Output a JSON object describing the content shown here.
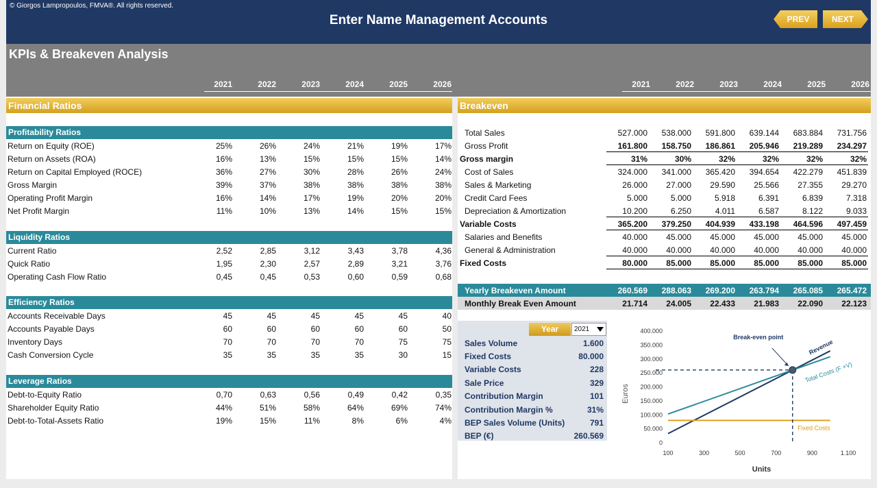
{
  "header": {
    "copyright": "© Giorgos Lampropoulos, FMVA®. All rights reserved.",
    "title": "Enter Name Management Accounts",
    "prev_label": "PREV",
    "next_label": "NEXT"
  },
  "page_title": "KPIs & Breakeven Analysis",
  "years": [
    "2021",
    "2022",
    "2023",
    "2024",
    "2025",
    "2026"
  ],
  "ratios": {
    "title": "Financial Ratios",
    "groups": [
      {
        "title": "Profitability Ratios",
        "rows": [
          {
            "label": "Return on Equity (ROE)",
            "values": [
              "25%",
              "26%",
              "24%",
              "21%",
              "19%",
              "17%"
            ]
          },
          {
            "label": "Return on Assets (ROA)",
            "values": [
              "16%",
              "13%",
              "15%",
              "15%",
              "15%",
              "14%"
            ]
          },
          {
            "label": "Return on Capital Employed (ROCE)",
            "values": [
              "36%",
              "27%",
              "30%",
              "28%",
              "26%",
              "24%"
            ]
          },
          {
            "label": "Gross Margin",
            "values": [
              "39%",
              "37%",
              "38%",
              "38%",
              "38%",
              "38%"
            ]
          },
          {
            "label": "Operating Profit Margin",
            "values": [
              "16%",
              "14%",
              "17%",
              "19%",
              "20%",
              "20%"
            ]
          },
          {
            "label": "Net Profit Margin",
            "values": [
              "11%",
              "10%",
              "13%",
              "14%",
              "15%",
              "15%"
            ]
          }
        ]
      },
      {
        "title": "Liquidity Ratios",
        "rows": [
          {
            "label": "Current Ratio",
            "values": [
              "2,52",
              "2,85",
              "3,12",
              "3,43",
              "3,78",
              "4,36"
            ]
          },
          {
            "label": "Quick Ratio",
            "values": [
              "1,95",
              "2,30",
              "2,57",
              "2,89",
              "3,21",
              "3,76"
            ]
          },
          {
            "label": "Operating Cash Flow Ratio",
            "values": [
              "0,45",
              "0,45",
              "0,53",
              "0,60",
              "0,59",
              "0,68"
            ]
          }
        ]
      },
      {
        "title": "Efficiency Ratios",
        "rows": [
          {
            "label": "Accounts Receivable Days",
            "values": [
              "45",
              "45",
              "45",
              "45",
              "45",
              "40"
            ]
          },
          {
            "label": "Accounts Payable Days",
            "values": [
              "60",
              "60",
              "60",
              "60",
              "60",
              "50"
            ]
          },
          {
            "label": "Inventory Days",
            "values": [
              "70",
              "70",
              "70",
              "70",
              "75",
              "75"
            ]
          },
          {
            "label": "Cash Conversion Cycle",
            "values": [
              "35",
              "35",
              "35",
              "35",
              "30",
              "15"
            ]
          }
        ]
      },
      {
        "title": "Leverage Ratios",
        "rows": [
          {
            "label": "Debt-to-Equity Ratio",
            "values": [
              "0,70",
              "0,63",
              "0,56",
              "0,49",
              "0,42",
              "0,35"
            ]
          },
          {
            "label": "Shareholder Equity Ratio",
            "values": [
              "44%",
              "51%",
              "58%",
              "64%",
              "69%",
              "74%"
            ]
          },
          {
            "label": "Debt-to-Total-Assets Ratio",
            "values": [
              "19%",
              "15%",
              "11%",
              "8%",
              "6%",
              "4%"
            ]
          }
        ]
      }
    ]
  },
  "breakeven": {
    "title": "Breakeven",
    "rows": [
      {
        "label": "Total Sales",
        "values": [
          "527.000",
          "538.000",
          "591.800",
          "639.144",
          "683.884",
          "731.756"
        ],
        "indent": true,
        "bold": false,
        "underline": false
      },
      {
        "label": "Gross Profit",
        "values": [
          "161.800",
          "158.750",
          "186.861",
          "205.946",
          "219.289",
          "234.297"
        ],
        "indent": true,
        "bold": true,
        "underline": true
      },
      {
        "label": "Gross margin",
        "values": [
          "31%",
          "30%",
          "32%",
          "32%",
          "32%",
          "32%"
        ],
        "indent": false,
        "bold": true,
        "underline": true
      },
      {
        "label": "Cost of Sales",
        "values": [
          "324.000",
          "341.000",
          "365.420",
          "394.654",
          "422.279",
          "451.839"
        ],
        "indent": true,
        "bold": false,
        "underline": false
      },
      {
        "label": "Sales & Marketing",
        "values": [
          "26.000",
          "27.000",
          "29.590",
          "25.566",
          "27.355",
          "29.270"
        ],
        "indent": true,
        "bold": false,
        "underline": false
      },
      {
        "label": "Credit Card Fees",
        "values": [
          "5.000",
          "5.000",
          "5.918",
          "6.391",
          "6.839",
          "7.318"
        ],
        "indent": true,
        "bold": false,
        "underline": false
      },
      {
        "label": "Depreciation & Amortization",
        "values": [
          "10.200",
          "6.250",
          "4.011",
          "6.587",
          "8.122",
          "9.033"
        ],
        "indent": true,
        "bold": false,
        "underline": true
      },
      {
        "label": "Variable Costs",
        "values": [
          "365.200",
          "379.250",
          "404.939",
          "433.198",
          "464.596",
          "497.459"
        ],
        "indent": false,
        "bold": true,
        "underline": true
      },
      {
        "label": "Salaries and Benefits",
        "values": [
          "40.000",
          "45.000",
          "45.000",
          "45.000",
          "45.000",
          "45.000"
        ],
        "indent": true,
        "bold": false,
        "underline": false
      },
      {
        "label": "General & Administration",
        "values": [
          "40.000",
          "40.000",
          "40.000",
          "40.000",
          "40.000",
          "40.000"
        ],
        "indent": true,
        "bold": false,
        "underline": true
      },
      {
        "label": "Fixed Costs",
        "values": [
          "80.000",
          "85.000",
          "85.000",
          "85.000",
          "85.000",
          "85.000"
        ],
        "indent": false,
        "bold": true,
        "underline": true
      }
    ],
    "yearly": {
      "label": "Yearly Breakeven Amount",
      "values": [
        "260.569",
        "288.063",
        "269.200",
        "263.794",
        "265.085",
        "265.472"
      ]
    },
    "monthly": {
      "label": "Monthly Break Even Amount",
      "values": [
        "21.714",
        "24.005",
        "22.433",
        "21.983",
        "22.090",
        "22.123"
      ]
    }
  },
  "calc": {
    "year_label": "Year",
    "year_value": "2021",
    "rows": [
      {
        "label": "Sales Volume",
        "value": "1.600"
      },
      {
        "label": "Fixed Costs",
        "value": "80.000"
      },
      {
        "label": "Variable Costs",
        "value": "228"
      },
      {
        "label": "Sale Price",
        "value": "329"
      },
      {
        "label": "Contribution Margin",
        "value": "101"
      },
      {
        "label": "Contribution Margin %",
        "value": "31%"
      },
      {
        "label": "BEP Sales Volume (Units)",
        "value": "791"
      },
      {
        "label": "BEP (€)",
        "value": "260.569"
      }
    ]
  },
  "chart_data": {
    "type": "line",
    "xlabel": "Units",
    "ylabel": "Euros",
    "xlim": [
      100,
      1100
    ],
    "ylim": [
      0,
      400000
    ],
    "x_ticks": [
      "100",
      "300",
      "500",
      "700",
      "900",
      "1.100"
    ],
    "y_ticks": [
      "0",
      "50.000",
      "100.000",
      "150.000",
      "200.000",
      "250.000",
      "300.000",
      "350.000",
      "400.000"
    ],
    "series": [
      {
        "name": "Revenue",
        "color": "#1f3864",
        "x": [
          100,
          1000
        ],
        "y": [
          32900,
          329000
        ]
      },
      {
        "name": "Total Costs (F +V)",
        "color": "#2a8a9a",
        "x": [
          100,
          1000
        ],
        "y": [
          102800,
          308000
        ]
      },
      {
        "name": "Fixed Costs",
        "color": "#e0a020",
        "x": [
          100,
          1000
        ],
        "y": [
          80000,
          80000
        ]
      }
    ],
    "breakeven_point": {
      "label": "Break-even point",
      "x": 791,
      "y": 260569
    }
  }
}
